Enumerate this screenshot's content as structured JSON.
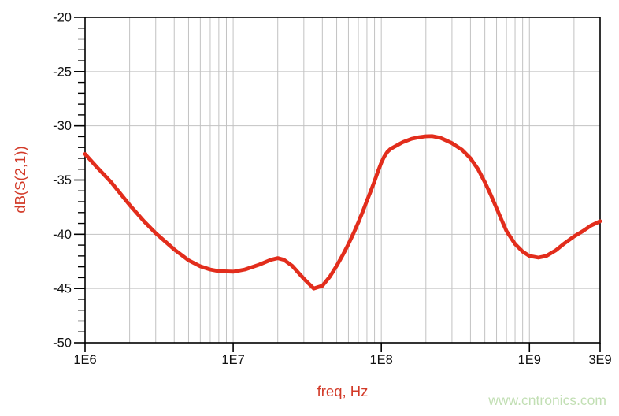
{
  "page": {
    "background": "#ffffff"
  },
  "watermark": {
    "text": "www.cntronics.com",
    "color": "#c2dfb4"
  },
  "chart_data": {
    "type": "line",
    "title": "",
    "xlabel": "freq, Hz",
    "ylabel": "dB(S(2,1))",
    "x_scale": "log",
    "x_range": [
      1000000,
      3000000000
    ],
    "y_range": [
      -50,
      -20
    ],
    "y_major_step": 5,
    "y_minor_step": 1,
    "grid": true,
    "legend_position": "none",
    "colors": {
      "trace": "#e22d1c",
      "axis_title": "#d23a28",
      "grid": "#c2c2c2",
      "axis": "#000000",
      "tick_text": "#111111"
    },
    "x_tick_labels": [
      {
        "value": 1000000,
        "label": "1E6"
      },
      {
        "value": 10000000,
        "label": "1E7"
      },
      {
        "value": 100000000,
        "label": "1E8"
      },
      {
        "value": 1000000000,
        "label": "1E9"
      },
      {
        "value": 3000000000,
        "label": "3E9"
      }
    ],
    "y_tick_labels": [
      {
        "value": -20,
        "label": "-20"
      },
      {
        "value": -25,
        "label": "-25"
      },
      {
        "value": -30,
        "label": "-30"
      },
      {
        "value": -35,
        "label": "-35"
      },
      {
        "value": -40,
        "label": "-40"
      },
      {
        "value": -45,
        "label": "-45"
      },
      {
        "value": -50,
        "label": "-50"
      }
    ],
    "series": [
      {
        "name": "dB(S(2,1))",
        "points": [
          [
            1000000,
            -32.6
          ],
          [
            1200000,
            -33.8
          ],
          [
            1500000,
            -35.2
          ],
          [
            2000000,
            -37.3
          ],
          [
            2500000,
            -38.8
          ],
          [
            3000000,
            -39.9
          ],
          [
            4000000,
            -41.4
          ],
          [
            5000000,
            -42.4
          ],
          [
            6000000,
            -42.95
          ],
          [
            7000000,
            -43.25
          ],
          [
            8000000,
            -43.4
          ],
          [
            10000000,
            -43.45
          ],
          [
            12000000,
            -43.25
          ],
          [
            15000000,
            -42.8
          ],
          [
            18000000,
            -42.35
          ],
          [
            20000000,
            -42.2
          ],
          [
            22000000,
            -42.35
          ],
          [
            25000000,
            -42.9
          ],
          [
            30000000,
            -44.1
          ],
          [
            35000000,
            -45.0
          ],
          [
            40000000,
            -44.75
          ],
          [
            45000000,
            -43.9
          ],
          [
            50000000,
            -42.9
          ],
          [
            55000000,
            -41.9
          ],
          [
            60000000,
            -40.9
          ],
          [
            65000000,
            -39.9
          ],
          [
            70000000,
            -38.9
          ],
          [
            75000000,
            -37.9
          ],
          [
            80000000,
            -36.9
          ],
          [
            85000000,
            -36.0
          ],
          [
            90000000,
            -35.1
          ],
          [
            95000000,
            -34.2
          ],
          [
            100000000,
            -33.4
          ],
          [
            105000000,
            -32.8
          ],
          [
            110000000,
            -32.4
          ],
          [
            115000000,
            -32.15
          ],
          [
            120000000,
            -32.0
          ],
          [
            140000000,
            -31.5
          ],
          [
            160000000,
            -31.2
          ],
          [
            180000000,
            -31.05
          ],
          [
            200000000,
            -30.97
          ],
          [
            220000000,
            -30.95
          ],
          [
            250000000,
            -31.1
          ],
          [
            300000000,
            -31.6
          ],
          [
            350000000,
            -32.2
          ],
          [
            400000000,
            -33.0
          ],
          [
            450000000,
            -34.0
          ],
          [
            500000000,
            -35.2
          ],
          [
            550000000,
            -36.4
          ],
          [
            600000000,
            -37.6
          ],
          [
            650000000,
            -38.7
          ],
          [
            700000000,
            -39.7
          ],
          [
            800000000,
            -40.9
          ],
          [
            900000000,
            -41.6
          ],
          [
            1000000000,
            -42.0
          ],
          [
            1150000000,
            -42.15
          ],
          [
            1300000000,
            -42.0
          ],
          [
            1500000000,
            -41.5
          ],
          [
            1700000000,
            -40.9
          ],
          [
            2000000000,
            -40.2
          ],
          [
            2300000000,
            -39.7
          ],
          [
            2600000000,
            -39.2
          ],
          [
            3000000000,
            -38.8
          ]
        ]
      }
    ]
  }
}
